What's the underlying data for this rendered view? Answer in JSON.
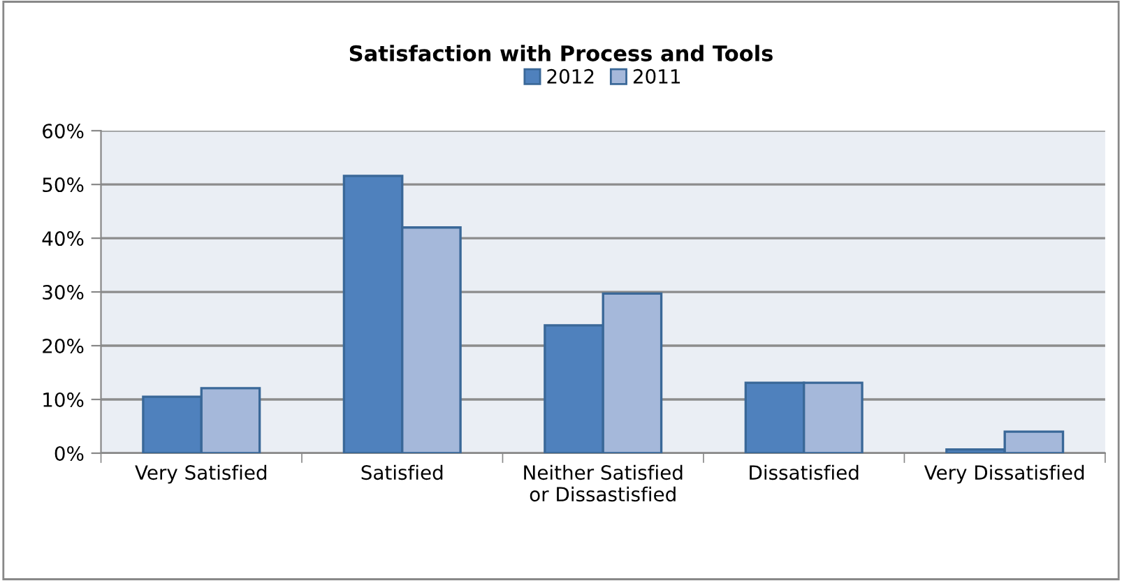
{
  "chart_data": {
    "type": "bar",
    "title": "Satisfaction with Process and Tools",
    "categories": [
      "Very Satisfied",
      "Satisfied",
      "Neither Satisfied\nor Dissastisfied",
      "Dissatisfied",
      "Very Dissatisfied"
    ],
    "series": [
      {
        "name": "2012",
        "color": "#4f81bd",
        "values": [
          10.5,
          51.6,
          23.8,
          13.1,
          0.7
        ]
      },
      {
        "name": "2011",
        "color": "#a5b8da",
        "values": [
          12.1,
          42.0,
          29.7,
          13.1,
          4.0
        ]
      }
    ],
    "ylim": [
      0,
      60
    ],
    "yticks": [
      {
        "value": 0,
        "label": "0%"
      },
      {
        "value": 10,
        "label": "10%"
      },
      {
        "value": 20,
        "label": "20%"
      },
      {
        "value": 30,
        "label": "30%"
      },
      {
        "value": 40,
        "label": "40%"
      },
      {
        "value": 50,
        "label": "50%"
      },
      {
        "value": 60,
        "label": "60%"
      }
    ],
    "grid": "y",
    "legend": "top"
  }
}
